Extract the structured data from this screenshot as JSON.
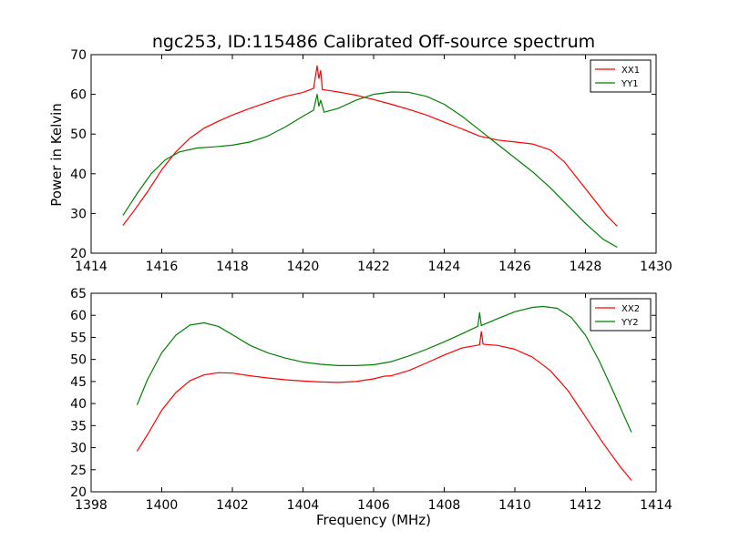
{
  "figure": {
    "title": "ngc253, ID:115486 Calibrated Off-source spectrum",
    "ylabel": "Power in Kelvin",
    "xlabel": "Frequency (MHz)"
  },
  "chart_data": [
    {
      "type": "line",
      "title": "ngc253, ID:115486 Calibrated Off-source spectrum",
      "xlabel": "",
      "ylabel": "Power in Kelvin",
      "xlim": [
        1414,
        1430
      ],
      "ylim": [
        20,
        70
      ],
      "xticks": [
        1414,
        1416,
        1418,
        1420,
        1422,
        1424,
        1426,
        1428,
        1430
      ],
      "yticks": [
        20,
        30,
        40,
        50,
        60,
        70
      ],
      "grid": false,
      "legend_position": "top-right",
      "series": [
        {
          "name": "XX1",
          "color": "#ff0000",
          "x": [
            1414.9,
            1415.2,
            1415.6,
            1416.0,
            1416.4,
            1416.8,
            1417.2,
            1417.6,
            1418.0,
            1418.5,
            1419.0,
            1419.5,
            1420.0,
            1420.3,
            1420.4,
            1420.45,
            1420.5,
            1420.55,
            1420.7,
            1421.0,
            1421.5,
            1422.0,
            1422.5,
            1423.0,
            1423.5,
            1424.0,
            1424.5,
            1425.0,
            1425.5,
            1426.0,
            1426.5,
            1427.0,
            1427.4,
            1427.8,
            1428.2,
            1428.6,
            1428.9
          ],
          "y": [
            27.0,
            30.5,
            35.5,
            41.0,
            45.5,
            49.0,
            51.5,
            53.2,
            54.8,
            56.5,
            58.0,
            59.5,
            60.5,
            61.5,
            67.2,
            64.0,
            66.0,
            61.2,
            61.0,
            60.6,
            59.8,
            58.7,
            57.5,
            56.2,
            54.8,
            53.0,
            51.3,
            49.5,
            48.5,
            48.0,
            47.5,
            46.0,
            43.0,
            38.5,
            34.0,
            29.5,
            26.8
          ]
        },
        {
          "name": "YY1",
          "color": "#008000",
          "x": [
            1414.9,
            1415.3,
            1415.7,
            1416.1,
            1416.5,
            1417.0,
            1417.5,
            1418.0,
            1418.5,
            1419.0,
            1419.5,
            1420.0,
            1420.3,
            1420.4,
            1420.45,
            1420.5,
            1420.6,
            1421.0,
            1421.5,
            1422.0,
            1422.5,
            1423.0,
            1423.5,
            1424.0,
            1424.5,
            1425.0,
            1425.5,
            1426.0,
            1426.5,
            1427.0,
            1427.5,
            1428.0,
            1428.5,
            1428.9
          ],
          "y": [
            29.5,
            35.0,
            40.0,
            43.5,
            45.5,
            46.5,
            46.8,
            47.2,
            48.0,
            49.5,
            51.8,
            54.5,
            56.0,
            60.0,
            57.0,
            58.5,
            55.5,
            56.5,
            58.5,
            60.0,
            60.6,
            60.5,
            59.5,
            57.5,
            54.5,
            51.0,
            47.5,
            44.0,
            40.5,
            36.5,
            32.0,
            27.5,
            23.5,
            21.5
          ]
        }
      ]
    },
    {
      "type": "line",
      "title": "",
      "xlabel": "Frequency (MHz)",
      "ylabel": "",
      "xlim": [
        1398,
        1414
      ],
      "ylim": [
        20,
        65
      ],
      "xticks": [
        1398,
        1400,
        1402,
        1404,
        1406,
        1408,
        1410,
        1412,
        1414
      ],
      "yticks": [
        20,
        25,
        30,
        35,
        40,
        45,
        50,
        55,
        60,
        65
      ],
      "grid": false,
      "legend_position": "top-right",
      "series": [
        {
          "name": "XX2",
          "color": "#ff0000",
          "x": [
            1399.3,
            1399.6,
            1400.0,
            1400.4,
            1400.8,
            1401.2,
            1401.6,
            1402.0,
            1402.5,
            1403.0,
            1403.5,
            1404.0,
            1404.5,
            1405.0,
            1405.5,
            1406.0,
            1406.3,
            1406.5,
            1407.0,
            1407.5,
            1408.0,
            1408.5,
            1409.0,
            1409.05,
            1409.1,
            1409.15,
            1409.5,
            1410.0,
            1410.5,
            1411.0,
            1411.5,
            1412.0,
            1412.5,
            1413.0,
            1413.3
          ],
          "y": [
            29.2,
            33.0,
            38.5,
            42.5,
            45.2,
            46.5,
            47.0,
            46.9,
            46.3,
            45.8,
            45.4,
            45.1,
            44.9,
            44.8,
            45.0,
            45.6,
            46.2,
            46.3,
            47.5,
            49.2,
            51.0,
            52.6,
            53.3,
            56.3,
            53.5,
            53.4,
            53.2,
            52.3,
            50.5,
            47.5,
            43.0,
            37.0,
            31.0,
            25.5,
            22.6
          ]
        },
        {
          "name": "YY2",
          "color": "#008000",
          "x": [
            1399.3,
            1399.6,
            1400.0,
            1400.4,
            1400.8,
            1401.2,
            1401.6,
            1402.0,
            1402.5,
            1403.0,
            1403.5,
            1404.0,
            1404.5,
            1405.0,
            1405.5,
            1406.0,
            1406.5,
            1407.0,
            1407.5,
            1408.0,
            1408.5,
            1408.95,
            1409.0,
            1409.05,
            1409.5,
            1410.0,
            1410.5,
            1410.8,
            1411.2,
            1411.6,
            1412.0,
            1412.4,
            1412.8,
            1413.3
          ],
          "y": [
            39.7,
            45.5,
            51.5,
            55.5,
            57.8,
            58.3,
            57.5,
            55.6,
            53.2,
            51.5,
            50.3,
            49.4,
            48.9,
            48.6,
            48.6,
            48.8,
            49.5,
            50.8,
            52.3,
            54.0,
            55.8,
            57.5,
            60.6,
            57.7,
            59.2,
            60.8,
            61.8,
            62.0,
            61.6,
            59.5,
            55.5,
            49.5,
            42.5,
            33.5
          ]
        }
      ]
    }
  ]
}
